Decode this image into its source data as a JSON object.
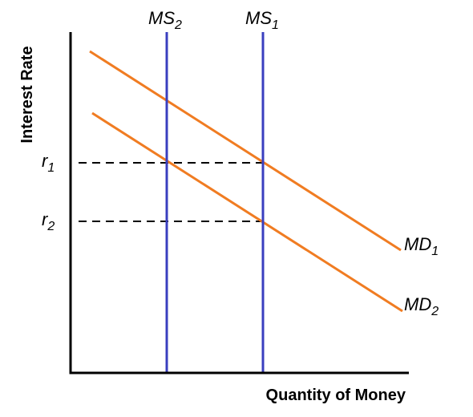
{
  "axes": {
    "y_title": "Interest Rate",
    "x_title": "Quantity of Money"
  },
  "supply_curves": [
    {
      "id": "ms2",
      "main": "MS",
      "sub": "2"
    },
    {
      "id": "ms1",
      "main": "MS",
      "sub": "1"
    }
  ],
  "demand_curves": [
    {
      "id": "md1",
      "main": "MD",
      "sub": "1"
    },
    {
      "id": "md2",
      "main": "MD",
      "sub": "2"
    }
  ],
  "rate_levels": [
    {
      "id": "r1",
      "main": "r",
      "sub": "1"
    },
    {
      "id": "r2",
      "main": "r",
      "sub": "2"
    }
  ],
  "colors": {
    "supply": "#3a3fbf",
    "demand": "#f07c22",
    "axis": "#000000"
  }
}
